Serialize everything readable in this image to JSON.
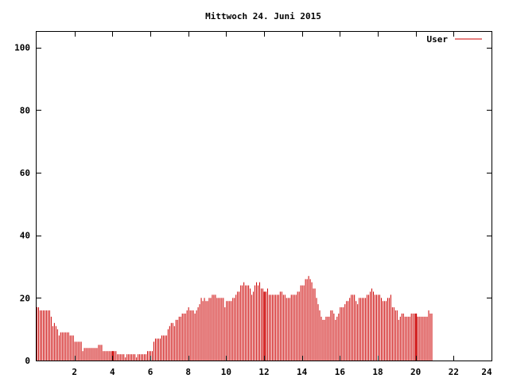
{
  "chart_data": {
    "type": "bar",
    "title": "Mittwoch 24. Juni 2015",
    "xlabel": "",
    "ylabel": "",
    "xlim": [
      0,
      24
    ],
    "ylim": [
      0,
      105
    ],
    "x_ticks": [
      2,
      4,
      6,
      8,
      10,
      12,
      14,
      16,
      18,
      20,
      22,
      24
    ],
    "y_ticks": [
      0,
      20,
      40,
      60,
      80,
      100
    ],
    "grid": false,
    "legend_position": "top-right",
    "series": [
      {
        "name": "User",
        "color": "#cc0000",
        "x_step_hours": 0.08333,
        "values": [
          17,
          17,
          16,
          16,
          16,
          16,
          16,
          16,
          16,
          14,
          11,
          12,
          11,
          10,
          8,
          9,
          9,
          9,
          9,
          9,
          9,
          8,
          8,
          8,
          6,
          6,
          6,
          6,
          6,
          3,
          4,
          4,
          4,
          4,
          4,
          4,
          4,
          4,
          4,
          5,
          5,
          5,
          3,
          3,
          3,
          3,
          3,
          3,
          3,
          3,
          3,
          2,
          2,
          2,
          2,
          2,
          1,
          2,
          2,
          2,
          2,
          2,
          2,
          1,
          2,
          2,
          2,
          2,
          2,
          2,
          3,
          3,
          3,
          3,
          6,
          7,
          7,
          7,
          7,
          8,
          8,
          8,
          8,
          10,
          11,
          12,
          12,
          11,
          13,
          13,
          14,
          14,
          15,
          15,
          15,
          16,
          17,
          16,
          16,
          16,
          15,
          16,
          17,
          18,
          20,
          19,
          20,
          19,
          19,
          20,
          20,
          21,
          21,
          21,
          20,
          20,
          20,
          20,
          20,
          17,
          19,
          19,
          19,
          19,
          20,
          20,
          21,
          22,
          22,
          24,
          24,
          25,
          24,
          24,
          24,
          23,
          21,
          22,
          24,
          25,
          24,
          25,
          23,
          23,
          22,
          22,
          23,
          21,
          21,
          21,
          21,
          21,
          21,
          21,
          22,
          22,
          21,
          21,
          20,
          20,
          20,
          21,
          21,
          21,
          21,
          22,
          22,
          24,
          24,
          24,
          26,
          26,
          27,
          26,
          25,
          23,
          23,
          20,
          18,
          16,
          14,
          13,
          13,
          14,
          14,
          14,
          16,
          16,
          15,
          13,
          14,
          15,
          17,
          17,
          17,
          18,
          19,
          19,
          20,
          21,
          21,
          21,
          19,
          18,
          20,
          20,
          20,
          20,
          20,
          21,
          21,
          22,
          23,
          22,
          21,
          21,
          21,
          21,
          20,
          19,
          19,
          19,
          20,
          20,
          21,
          17,
          17,
          16,
          16,
          13,
          14,
          15,
          15,
          14,
          14,
          14,
          14,
          15,
          15,
          15,
          15,
          14,
          14,
          14,
          14,
          14,
          14,
          14,
          16,
          15,
          15
        ],
        "heavy_bar_hours": [
          4.0,
          12.0,
          20.0
        ]
      }
    ]
  }
}
